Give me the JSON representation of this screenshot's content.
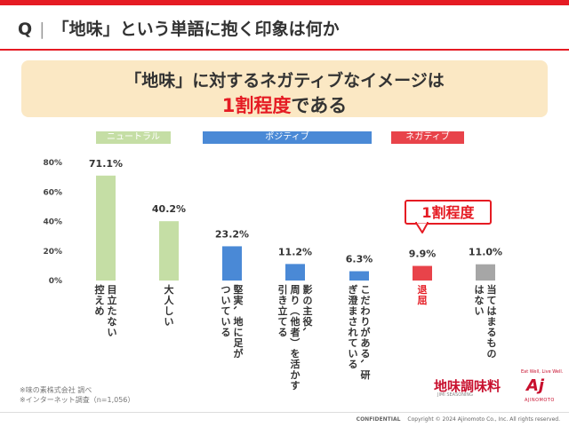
{
  "colors": {
    "accent_red": "#e51b23",
    "banner_bg": "#fbe8c4",
    "neutral_green": "#c5dea5",
    "positive_blue": "#4a89d6",
    "negative_red": "#e8434a",
    "grey_bar": "#a6a6a6"
  },
  "header": {
    "q_mark": "Q",
    "title": "「地味」という単語に抱く印象は何か"
  },
  "banner": {
    "line1": "「地味」に対するネガティブなイメージは",
    "highlight": "1割程度",
    "line2_rest": "である"
  },
  "categories": {
    "neutral": "ニュートラル",
    "positive": "ポジティブ",
    "negative": "ネガティブ"
  },
  "callout": "1割程度",
  "chart_data": {
    "type": "bar",
    "title": "",
    "xlabel": "",
    "ylabel": "",
    "ylim": [
      0,
      80
    ],
    "ytick_labels": [
      "0%",
      "20%",
      "40%",
      "60%",
      "80%"
    ],
    "ytick_values": [
      0,
      20,
      40,
      60,
      80
    ],
    "categories": [
      "目立たない控えめ",
      "大人しい",
      "堅実、地に足がついている",
      "影の主役、周り（他者）を活かす引き立てる",
      "こだわりがある、研ぎ澄まされている",
      "退屈",
      "当てはまるものはない"
    ],
    "values": [
      71.1,
      40.2,
      23.2,
      11.2,
      6.3,
      9.9,
      11.0
    ],
    "value_labels": [
      "71.1%",
      "40.2%",
      "23.2%",
      "11.2%",
      "6.3%",
      "9.9%",
      "11.0%"
    ],
    "groups": [
      "neutral",
      "neutral",
      "positive",
      "positive",
      "positive",
      "negative",
      "none"
    ],
    "label_columns": [
      [
        "控えめ",
        "目立たない"
      ],
      [
        "大人しい"
      ],
      [
        "ついている",
        "堅実、地に足が"
      ],
      [
        "引き立てる",
        "周り（他者）を活かす",
        "影の主役、"
      ],
      [
        "ぎ澄まされている",
        "こだわりがある、研"
      ],
      [
        "退屈"
      ],
      [
        "はない",
        "当てはまるもの"
      ]
    ]
  },
  "notes": [
    "※味の素株式会社 調べ",
    "※インターネット調査（n=1,056）"
  ],
  "logos": {
    "brand1": "地味調味料",
    "brand1_sub": "JIMI SEASONING",
    "brand2_tagline": "Eat Well, Live Well.",
    "brand2_mark": "Aj",
    "brand2_name": "AJINOMOTO"
  },
  "footer": {
    "confidential": "CONFIDENTIAL",
    "copyright": "Copyright © 2024 Ajinomoto Co., Inc. All rights reserved."
  }
}
